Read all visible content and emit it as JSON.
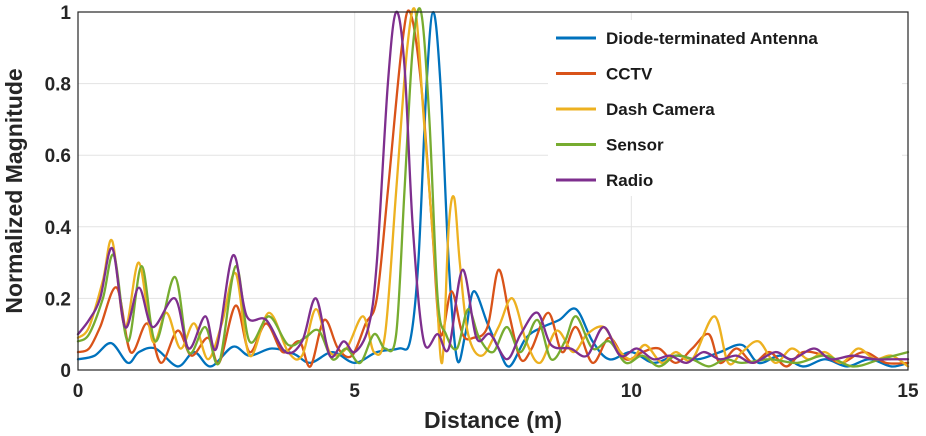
{
  "chart_data": {
    "type": "line",
    "title": "",
    "xlabel": "Distance (m)",
    "ylabel": "Normalized Magnitude",
    "xlim": [
      0,
      15
    ],
    "ylim": [
      0,
      1
    ],
    "xticks": [
      0,
      5,
      10,
      15
    ],
    "yticks": [
      0,
      0.2,
      0.4,
      0.6,
      0.8,
      1
    ],
    "ytick_labels": [
      "0",
      "0.2",
      "0.4",
      "0.6",
      "0.8",
      "1"
    ],
    "grid": true,
    "legend_position": "top-right",
    "series": [
      {
        "name": "Diode-terminated Antenna",
        "color": "#0072BD",
        "points": [
          [
            0,
            0.03
          ],
          [
            0.3,
            0.04
          ],
          [
            0.6,
            0.075
          ],
          [
            0.9,
            0.02
          ],
          [
            1.1,
            0.05
          ],
          [
            1.4,
            0.06
          ],
          [
            1.8,
            0.01
          ],
          [
            2.1,
            0.05
          ],
          [
            2.4,
            0.01
          ],
          [
            2.8,
            0.065
          ],
          [
            3.1,
            0.04
          ],
          [
            3.5,
            0.06
          ],
          [
            3.9,
            0.045
          ],
          [
            4.2,
            0.02
          ],
          [
            4.6,
            0.05
          ],
          [
            5.0,
            0.02
          ],
          [
            5.4,
            0.05
          ],
          [
            5.8,
            0.06
          ],
          [
            6.0,
            0.08
          ],
          [
            6.15,
            0.3
          ],
          [
            6.3,
            0.8
          ],
          [
            6.42,
            1.0
          ],
          [
            6.55,
            0.8
          ],
          [
            6.7,
            0.3
          ],
          [
            6.85,
            0.03
          ],
          [
            7.0,
            0.1
          ],
          [
            7.15,
            0.22
          ],
          [
            7.4,
            0.13
          ],
          [
            7.6,
            0.06
          ],
          [
            7.8,
            0.01
          ],
          [
            8.1,
            0.09
          ],
          [
            8.4,
            0.12
          ],
          [
            8.7,
            0.14
          ],
          [
            9.0,
            0.17
          ],
          [
            9.3,
            0.08
          ],
          [
            9.6,
            0.03
          ],
          [
            10.0,
            0.05
          ],
          [
            10.4,
            0.02
          ],
          [
            10.8,
            0.04
          ],
          [
            11.2,
            0.03
          ],
          [
            11.6,
            0.05
          ],
          [
            12.0,
            0.07
          ],
          [
            12.3,
            0.02
          ],
          [
            12.7,
            0.04
          ],
          [
            13.1,
            0.01
          ],
          [
            13.5,
            0.03
          ],
          [
            13.9,
            0.01
          ],
          [
            14.3,
            0.03
          ],
          [
            14.7,
            0.01
          ],
          [
            15.0,
            0.02
          ]
        ]
      },
      {
        "name": "CCTV",
        "color": "#D95319",
        "points": [
          [
            0,
            0.05
          ],
          [
            0.2,
            0.06
          ],
          [
            0.4,
            0.12
          ],
          [
            0.7,
            0.23
          ],
          [
            0.95,
            0.05
          ],
          [
            1.25,
            0.13
          ],
          [
            1.5,
            0.02
          ],
          [
            1.8,
            0.11
          ],
          [
            2.05,
            0.04
          ],
          [
            2.35,
            0.09
          ],
          [
            2.55,
            0.02
          ],
          [
            2.85,
            0.18
          ],
          [
            3.1,
            0.05
          ],
          [
            3.4,
            0.13
          ],
          [
            3.7,
            0.05
          ],
          [
            4.0,
            0.08
          ],
          [
            4.2,
            0.01
          ],
          [
            4.45,
            0.14
          ],
          [
            4.7,
            0.06
          ],
          [
            4.95,
            0.04
          ],
          [
            5.2,
            0.13
          ],
          [
            5.4,
            0.2
          ],
          [
            5.6,
            0.5
          ],
          [
            5.85,
            0.9
          ],
          [
            6.0,
            1.0
          ],
          [
            6.2,
            0.8
          ],
          [
            6.4,
            0.4
          ],
          [
            6.55,
            0.1
          ],
          [
            6.75,
            0.22
          ],
          [
            6.95,
            0.1
          ],
          [
            7.15,
            0.09
          ],
          [
            7.4,
            0.12
          ],
          [
            7.6,
            0.28
          ],
          [
            7.8,
            0.15
          ],
          [
            8.0,
            0.03
          ],
          [
            8.2,
            0.06
          ],
          [
            8.5,
            0.16
          ],
          [
            8.75,
            0.05
          ],
          [
            9.0,
            0.12
          ],
          [
            9.3,
            0.02
          ],
          [
            9.6,
            0.09
          ],
          [
            9.9,
            0.03
          ],
          [
            10.2,
            0.05
          ],
          [
            10.5,
            0.06
          ],
          [
            10.8,
            0.02
          ],
          [
            11.1,
            0.06
          ],
          [
            11.4,
            0.1
          ],
          [
            11.6,
            0.02
          ],
          [
            11.9,
            0.06
          ],
          [
            12.2,
            0.02
          ],
          [
            12.5,
            0.05
          ],
          [
            12.8,
            0.01
          ],
          [
            13.1,
            0.05
          ],
          [
            13.5,
            0.04
          ],
          [
            13.8,
            0.02
          ],
          [
            14.2,
            0.05
          ],
          [
            14.6,
            0.02
          ],
          [
            15.0,
            0.02
          ]
        ]
      },
      {
        "name": "Dash Camera",
        "color": "#EDB120",
        "points": [
          [
            0,
            0.09
          ],
          [
            0.2,
            0.12
          ],
          [
            0.45,
            0.25
          ],
          [
            0.62,
            0.36
          ],
          [
            0.85,
            0.12
          ],
          [
            1.1,
            0.3
          ],
          [
            1.35,
            0.08
          ],
          [
            1.6,
            0.16
          ],
          [
            1.85,
            0.06
          ],
          [
            2.1,
            0.13
          ],
          [
            2.35,
            0.03
          ],
          [
            2.6,
            0.13
          ],
          [
            2.85,
            0.27
          ],
          [
            3.1,
            0.04
          ],
          [
            3.45,
            0.16
          ],
          [
            3.8,
            0.05
          ],
          [
            4.05,
            0.04
          ],
          [
            4.3,
            0.17
          ],
          [
            4.55,
            0.05
          ],
          [
            4.85,
            0.06
          ],
          [
            5.15,
            0.15
          ],
          [
            5.35,
            0.05
          ],
          [
            5.55,
            0.1
          ],
          [
            5.75,
            0.5
          ],
          [
            5.95,
            0.9
          ],
          [
            6.1,
            1.0
          ],
          [
            6.25,
            0.7
          ],
          [
            6.45,
            0.3
          ],
          [
            6.58,
            0.02
          ],
          [
            6.7,
            0.4
          ],
          [
            6.8,
            0.48
          ],
          [
            6.9,
            0.3
          ],
          [
            7.05,
            0.1
          ],
          [
            7.3,
            0.04
          ],
          [
            7.6,
            0.12
          ],
          [
            7.85,
            0.2
          ],
          [
            8.1,
            0.08
          ],
          [
            8.35,
            0.02
          ],
          [
            8.65,
            0.11
          ],
          [
            8.95,
            0.05
          ],
          [
            9.2,
            0.1
          ],
          [
            9.5,
            0.12
          ],
          [
            9.75,
            0.06
          ],
          [
            10.0,
            0.03
          ],
          [
            10.25,
            0.07
          ],
          [
            10.55,
            0.02
          ],
          [
            10.8,
            0.05
          ],
          [
            11.1,
            0.03
          ],
          [
            11.5,
            0.15
          ],
          [
            11.75,
            0.02
          ],
          [
            12.0,
            0.05
          ],
          [
            12.3,
            0.08
          ],
          [
            12.6,
            0.02
          ],
          [
            12.9,
            0.06
          ],
          [
            13.2,
            0.03
          ],
          [
            13.5,
            0.05
          ],
          [
            13.8,
            0.02
          ],
          [
            14.1,
            0.06
          ],
          [
            14.4,
            0.03
          ],
          [
            14.7,
            0.04
          ],
          [
            15.0,
            0.01
          ]
        ]
      },
      {
        "name": "Sensor",
        "color": "#77AC30",
        "points": [
          [
            0,
            0.08
          ],
          [
            0.2,
            0.1
          ],
          [
            0.45,
            0.2
          ],
          [
            0.65,
            0.32
          ],
          [
            0.9,
            0.08
          ],
          [
            1.15,
            0.29
          ],
          [
            1.4,
            0.08
          ],
          [
            1.75,
            0.26
          ],
          [
            2.0,
            0.05
          ],
          [
            2.3,
            0.12
          ],
          [
            2.55,
            0.02
          ],
          [
            2.85,
            0.29
          ],
          [
            3.1,
            0.08
          ],
          [
            3.45,
            0.15
          ],
          [
            3.8,
            0.07
          ],
          [
            4.1,
            0.09
          ],
          [
            4.35,
            0.11
          ],
          [
            4.6,
            0.03
          ],
          [
            4.85,
            0.06
          ],
          [
            5.1,
            0.02
          ],
          [
            5.35,
            0.1
          ],
          [
            5.55,
            0.06
          ],
          [
            5.75,
            0.1
          ],
          [
            5.9,
            0.5
          ],
          [
            6.05,
            0.9
          ],
          [
            6.2,
            1.0
          ],
          [
            6.35,
            0.7
          ],
          [
            6.5,
            0.2
          ],
          [
            6.65,
            0.1
          ],
          [
            6.85,
            0.06
          ],
          [
            7.05,
            0.17
          ],
          [
            7.25,
            0.09
          ],
          [
            7.5,
            0.05
          ],
          [
            7.75,
            0.12
          ],
          [
            8.0,
            0.05
          ],
          [
            8.3,
            0.14
          ],
          [
            8.55,
            0.03
          ],
          [
            8.8,
            0.08
          ],
          [
            9.0,
            0.15
          ],
          [
            9.3,
            0.06
          ],
          [
            9.6,
            0.08
          ],
          [
            9.9,
            0.02
          ],
          [
            10.2,
            0.04
          ],
          [
            10.5,
            0.01
          ],
          [
            10.8,
            0.04
          ],
          [
            11.1,
            0.03
          ],
          [
            11.4,
            0.01
          ],
          [
            11.7,
            0.03
          ],
          [
            12.0,
            0.02
          ],
          [
            12.5,
            0.03
          ],
          [
            13.0,
            0.02
          ],
          [
            13.5,
            0.04
          ],
          [
            14.0,
            0.01
          ],
          [
            14.5,
            0.03
          ],
          [
            15.0,
            0.05
          ]
        ]
      },
      {
        "name": "Radio",
        "color": "#7E2F8E",
        "points": [
          [
            0,
            0.1
          ],
          [
            0.2,
            0.14
          ],
          [
            0.4,
            0.2
          ],
          [
            0.62,
            0.34
          ],
          [
            0.85,
            0.12
          ],
          [
            1.1,
            0.23
          ],
          [
            1.35,
            0.12
          ],
          [
            1.75,
            0.2
          ],
          [
            2.0,
            0.06
          ],
          [
            2.3,
            0.15
          ],
          [
            2.5,
            0.06
          ],
          [
            2.8,
            0.32
          ],
          [
            3.05,
            0.15
          ],
          [
            3.4,
            0.14
          ],
          [
            3.75,
            0.05
          ],
          [
            4.05,
            0.08
          ],
          [
            4.3,
            0.2
          ],
          [
            4.55,
            0.04
          ],
          [
            4.8,
            0.08
          ],
          [
            5.0,
            0.05
          ],
          [
            5.25,
            0.12
          ],
          [
            5.4,
            0.3
          ],
          [
            5.6,
            0.8
          ],
          [
            5.75,
            1.0
          ],
          [
            5.9,
            0.85
          ],
          [
            6.05,
            0.4
          ],
          [
            6.25,
            0.08
          ],
          [
            6.5,
            0.1
          ],
          [
            6.7,
            0.06
          ],
          [
            6.95,
            0.28
          ],
          [
            7.2,
            0.09
          ],
          [
            7.45,
            0.1
          ],
          [
            7.75,
            0.03
          ],
          [
            8.0,
            0.1
          ],
          [
            8.3,
            0.16
          ],
          [
            8.55,
            0.07
          ],
          [
            8.9,
            0.06
          ],
          [
            9.2,
            0.04
          ],
          [
            9.5,
            0.12
          ],
          [
            9.8,
            0.04
          ],
          [
            10.1,
            0.06
          ],
          [
            10.4,
            0.03
          ],
          [
            10.7,
            0.04
          ],
          [
            11.0,
            0.02
          ],
          [
            11.3,
            0.05
          ],
          [
            11.6,
            0.03
          ],
          [
            11.9,
            0.04
          ],
          [
            12.2,
            0.02
          ],
          [
            12.6,
            0.05
          ],
          [
            12.9,
            0.03
          ],
          [
            13.3,
            0.06
          ],
          [
            13.6,
            0.03
          ],
          [
            14.0,
            0.04
          ],
          [
            14.4,
            0.03
          ],
          [
            14.7,
            0.03
          ],
          [
            15.0,
            0.03
          ]
        ]
      }
    ]
  }
}
